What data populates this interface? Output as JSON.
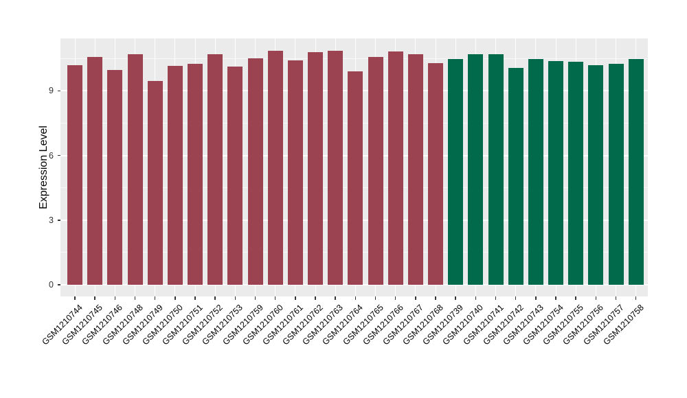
{
  "figure": {
    "background": "#FFFFFF",
    "plot_background": "#EBEBEB",
    "grid_color": "#FFFFFF",
    "axis_text_color": "#333333",
    "label_text_color": "#000000"
  },
  "chart_data": {
    "type": "bar",
    "title": "",
    "xlabel": "",
    "ylabel": "Expression Level",
    "ylim": [
      0,
      11.43
    ],
    "yticks": [
      0,
      3,
      6,
      9
    ],
    "minor_yticks": [
      1.5,
      4.5,
      7.5,
      10.5
    ],
    "grid": true,
    "legend": "none",
    "categories": [
      "GSM1210744",
      "GSM1210745",
      "GSM1210746",
      "GSM1210748",
      "GSM1210749",
      "GSM1210750",
      "GSM1210751",
      "GSM1210752",
      "GSM1210753",
      "GSM1210759",
      "GSM1210760",
      "GSM1210761",
      "GSM1210762",
      "GSM1210763",
      "GSM1210764",
      "GSM1210765",
      "GSM1210766",
      "GSM1210767",
      "GSM1210768",
      "GSM1210739",
      "GSM1210740",
      "GSM1210741",
      "GSM1210742",
      "GSM1210743",
      "GSM1210754",
      "GSM1210755",
      "GSM1210756",
      "GSM1210757",
      "GSM1210758"
    ],
    "values": [
      10.19,
      10.58,
      9.95,
      10.69,
      9.47,
      10.17,
      10.25,
      10.7,
      10.11,
      10.51,
      10.86,
      10.4,
      10.79,
      10.86,
      9.89,
      10.56,
      10.83,
      10.69,
      10.28,
      10.49,
      10.69,
      10.7,
      10.07,
      10.47,
      10.39,
      10.34,
      10.2,
      10.24,
      10.48
    ],
    "color_groups": [
      {
        "color": "#9B4350",
        "count": 19
      },
      {
        "color": "#006A4A",
        "count": 10
      }
    ]
  }
}
